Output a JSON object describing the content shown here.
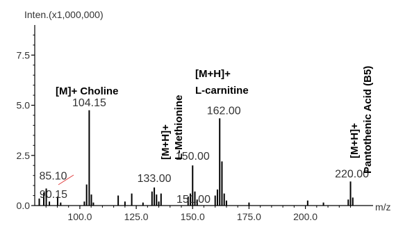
{
  "chart_data": {
    "type": "bar",
    "ylabel": "Inten.(x1,000,000)",
    "xlabel": "m/z",
    "xlim": [
      80,
      230
    ],
    "ylim": [
      0,
      9
    ],
    "x_ticks": [
      100.0,
      125.0,
      150.0,
      175.0,
      200.0
    ],
    "x_tick_labels": [
      "100.0",
      "125.0",
      "150.0",
      "175.0",
      "200.0"
    ],
    "y_ticks": [
      0,
      2.5,
      5.0,
      7.5
    ],
    "y_tick_labels": [
      "0.0",
      "2.5",
      "5.0",
      "7.5"
    ],
    "grid": false,
    "peaks": [
      {
        "mz": 82.0,
        "intensity": 0.35
      },
      {
        "mz": 84.0,
        "intensity": 0.65
      },
      {
        "mz": 85.1,
        "intensity": 0.85
      },
      {
        "mz": 86.5,
        "intensity": 0.2
      },
      {
        "mz": 90.15,
        "intensity": 0.45
      },
      {
        "mz": 91.5,
        "intensity": 0.15
      },
      {
        "mz": 102.0,
        "intensity": 0.2
      },
      {
        "mz": 103.0,
        "intensity": 1.05
      },
      {
        "mz": 104.15,
        "intensity": 4.75
      },
      {
        "mz": 105.1,
        "intensity": 0.55
      },
      {
        "mz": 106.0,
        "intensity": 0.15
      },
      {
        "mz": 117.0,
        "intensity": 0.5
      },
      {
        "mz": 120.0,
        "intensity": 0.2
      },
      {
        "mz": 123.0,
        "intensity": 0.6
      },
      {
        "mz": 128.0,
        "intensity": 0.15
      },
      {
        "mz": 132.0,
        "intensity": 0.7
      },
      {
        "mz": 133.0,
        "intensity": 0.9
      },
      {
        "mz": 134.0,
        "intensity": 0.55
      },
      {
        "mz": 135.0,
        "intensity": 0.2
      },
      {
        "mz": 136.0,
        "intensity": 0.6
      },
      {
        "mz": 148.0,
        "intensity": 0.45
      },
      {
        "mz": 149.0,
        "intensity": 0.6
      },
      {
        "mz": 150.0,
        "intensity": 2.0
      },
      {
        "mz": 151.0,
        "intensity": 0.7
      },
      {
        "mz": 152.0,
        "intensity": 0.3
      },
      {
        "mz": 160.0,
        "intensity": 0.5
      },
      {
        "mz": 161.0,
        "intensity": 0.8
      },
      {
        "mz": 162.0,
        "intensity": 4.35
      },
      {
        "mz": 163.0,
        "intensity": 2.2
      },
      {
        "mz": 164.0,
        "intensity": 0.6
      },
      {
        "mz": 165.0,
        "intensity": 0.25
      },
      {
        "mz": 175.0,
        "intensity": 0.15
      },
      {
        "mz": 201.0,
        "intensity": 0.25
      },
      {
        "mz": 208.0,
        "intensity": 0.15
      },
      {
        "mz": 219.0,
        "intensity": 0.3
      },
      {
        "mz": 220.0,
        "intensity": 1.2
      },
      {
        "mz": 221.0,
        "intensity": 0.4
      }
    ],
    "peak_labels": [
      {
        "mz": 104.15,
        "label": "104.15"
      },
      {
        "mz": 85.1,
        "label": "85.10"
      },
      {
        "mz": 90.15,
        "label": "90.15"
      },
      {
        "mz": 133.0,
        "label": "133.00"
      },
      {
        "mz": 150.0,
        "label": "150.00"
      },
      {
        "mz": 151.0,
        "label": "151.00"
      },
      {
        "mz": 162.0,
        "label": "162.00"
      },
      {
        "mz": 220.0,
        "label": "220.00"
      }
    ],
    "annotations": [
      {
        "text": "[M]+ Choline",
        "orientation": "horizontal"
      },
      {
        "text": "[M+H]+",
        "orientation": "vertical"
      },
      {
        "text": "L-Methionine",
        "orientation": "vertical"
      },
      {
        "text": "[M+H]+",
        "orientation": "horizontal"
      },
      {
        "text": "L-carnitine",
        "orientation": "horizontal"
      },
      {
        "text": "[M+H]+",
        "orientation": "vertical"
      },
      {
        "text": "Pantothenic Acid (B5)",
        "orientation": "vertical"
      }
    ],
    "colors": {
      "peak": "#000000",
      "axis": "#000000",
      "text": "#333333",
      "annotation": "#000000",
      "pointer": "#e04040"
    }
  }
}
